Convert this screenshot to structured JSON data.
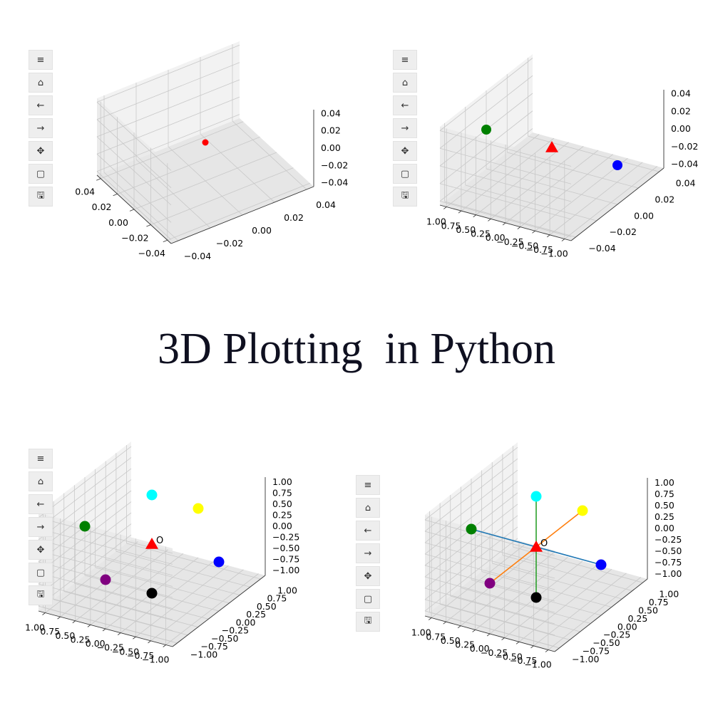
{
  "title": "3D Plotting  in Python",
  "toolbar": {
    "buttons": [
      {
        "name": "menu-icon",
        "glyph": "≡"
      },
      {
        "name": "home-icon",
        "glyph": "⌂"
      },
      {
        "name": "back-icon",
        "glyph": "←"
      },
      {
        "name": "forward-icon",
        "glyph": "→"
      },
      {
        "name": "pan-icon",
        "glyph": "✥"
      },
      {
        "name": "zoom-icon",
        "glyph": "▢"
      },
      {
        "name": "save-icon",
        "glyph": "🖫"
      }
    ]
  },
  "chart_data": [
    {
      "type": "scatter",
      "x_ticks": [
        "−0.04",
        "−0.02",
        "0.00",
        "0.02",
        "0.04"
      ],
      "y_ticks": [
        "0.04",
        "0.02",
        "0.00",
        "−0.02",
        "−0.04"
      ],
      "z_ticks": [
        "0.04",
        "0.02",
        "0.00",
        "−0.02",
        "−0.04"
      ],
      "xlim": [
        -0.05,
        0.05
      ],
      "ylim": [
        -0.05,
        0.05
      ],
      "zlim": [
        -0.05,
        0.05
      ],
      "points": [
        {
          "x": 0,
          "y": 0,
          "z": 0,
          "color": "#ff0000",
          "marker": "circle"
        }
      ]
    },
    {
      "type": "scatter",
      "x_ticks": [
        "−1.00",
        "−0.75",
        "−0.50",
        "−0.25",
        "0.00",
        "0.25",
        "0.50",
        "0.75",
        "1.00"
      ],
      "y_ticks": [
        "0.04",
        "0.02",
        "0.00",
        "−0.02",
        "−0.04"
      ],
      "z_ticks": [
        "0.04",
        "0.02",
        "0.00",
        "−0.02",
        "−0.04"
      ],
      "xlim": [
        -1.0,
        1.0
      ],
      "ylim": [
        -0.05,
        0.05
      ],
      "zlim": [
        -0.05,
        0.05
      ],
      "points": [
        {
          "x": -1,
          "y": 0,
          "z": 0,
          "color": "#0000ff",
          "marker": "circle"
        },
        {
          "x": 0,
          "y": 0,
          "z": 0,
          "color": "#ff0000",
          "marker": "triangle"
        },
        {
          "x": 1,
          "y": 0,
          "z": 0,
          "color": "#008000",
          "marker": "circle"
        }
      ]
    },
    {
      "type": "scatter",
      "x_ticks": [
        "−1.00",
        "−0.75",
        "−0.50",
        "−0.25",
        "0.00",
        "0.25",
        "0.50",
        "0.75",
        "1.00"
      ],
      "y_ticks": [
        "1.00",
        "0.75",
        "0.50",
        "0.25",
        "0.00",
        "−0.25",
        "−0.50",
        "−0.75",
        "−1.00"
      ],
      "z_ticks": [
        "1.00",
        "0.75",
        "0.50",
        "0.25",
        "0.00",
        "−0.25",
        "−0.50",
        "−0.75",
        "−1.00"
      ],
      "xlim": [
        -1.0,
        1.0
      ],
      "ylim": [
        -1.0,
        1.0
      ],
      "zlim": [
        -1.0,
        1.0
      ],
      "points": [
        {
          "x": -1,
          "y": 0,
          "z": 0,
          "color": "#0000ff",
          "marker": "circle"
        },
        {
          "x": 1,
          "y": 0,
          "z": 0,
          "color": "#008000",
          "marker": "circle"
        },
        {
          "x": 0,
          "y": 1,
          "z": 0,
          "color": "#ffff00",
          "marker": "circle"
        },
        {
          "x": 0,
          "y": -1,
          "z": 0,
          "color": "#800080",
          "marker": "circle"
        },
        {
          "x": 0,
          "y": 0,
          "z": 1,
          "color": "#00ffff",
          "marker": "circle"
        },
        {
          "x": 0,
          "y": 0,
          "z": -1,
          "color": "#000000",
          "marker": "circle"
        },
        {
          "x": 0,
          "y": 0,
          "z": 0,
          "color": "#ff0000",
          "marker": "triangle"
        }
      ],
      "annotations": [
        {
          "text": "O",
          "x": 0,
          "y": 0,
          "z": 0
        }
      ]
    },
    {
      "type": "scatter",
      "x_ticks": [
        "−1.00",
        "−0.75",
        "−0.50",
        "−0.25",
        "0.00",
        "0.25",
        "0.50",
        "0.75",
        "1.00"
      ],
      "y_ticks": [
        "1.00",
        "0.75",
        "0.50",
        "0.25",
        "0.00",
        "−0.25",
        "−0.50",
        "−0.75",
        "−1.00"
      ],
      "z_ticks": [
        "1.00",
        "0.75",
        "0.50",
        "0.25",
        "0.00",
        "−0.25",
        "−0.50",
        "−0.75",
        "−1.00"
      ],
      "xlim": [
        -1.0,
        1.0
      ],
      "ylim": [
        -1.0,
        1.0
      ],
      "zlim": [
        -1.0,
        1.0
      ],
      "points": [
        {
          "x": -1,
          "y": 0,
          "z": 0,
          "color": "#0000ff",
          "marker": "circle"
        },
        {
          "x": 1,
          "y": 0,
          "z": 0,
          "color": "#008000",
          "marker": "circle"
        },
        {
          "x": 0,
          "y": 1,
          "z": 0,
          "color": "#ffff00",
          "marker": "circle"
        },
        {
          "x": 0,
          "y": -1,
          "z": 0,
          "color": "#800080",
          "marker": "circle"
        },
        {
          "x": 0,
          "y": 0,
          "z": 1,
          "color": "#00ffff",
          "marker": "circle"
        },
        {
          "x": 0,
          "y": 0,
          "z": -1,
          "color": "#000000",
          "marker": "circle"
        },
        {
          "x": 0,
          "y": 0,
          "z": 0,
          "color": "#ff0000",
          "marker": "triangle"
        }
      ],
      "lines": [
        {
          "from": [
            -1,
            0,
            0
          ],
          "to": [
            1,
            0,
            0
          ],
          "color": "#1f77b4"
        },
        {
          "from": [
            0,
            -1,
            0
          ],
          "to": [
            0,
            1,
            0
          ],
          "color": "#ff7f0e"
        },
        {
          "from": [
            0,
            0,
            -1
          ],
          "to": [
            0,
            0,
            1
          ],
          "color": "#2ca02c"
        }
      ],
      "annotations": [
        {
          "text": "O",
          "x": 0,
          "y": 0,
          "z": 0
        }
      ]
    }
  ]
}
